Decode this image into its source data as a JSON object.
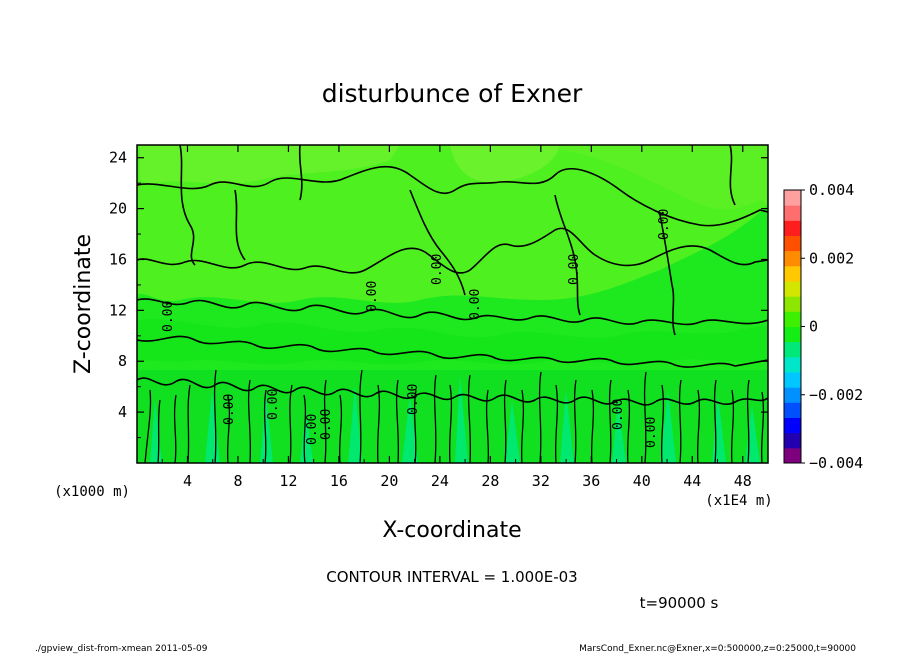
{
  "chart_data": {
    "type": "heatmap",
    "title": "disturbunce of Exner",
    "xlabel": "X-coordinate",
    "ylabel": "Z-coordinate",
    "x_unit_label": "(x1E4 m)",
    "y_unit_label": "(x1000 m)",
    "xlim": [
      0,
      50
    ],
    "ylim": [
      0,
      25
    ],
    "x_ticks": [
      4,
      8,
      12,
      16,
      20,
      24,
      28,
      32,
      36,
      40,
      44,
      48
    ],
    "y_ticks": [
      4,
      8,
      12,
      16,
      20,
      24
    ],
    "colorbar": {
      "min": -0.004,
      "max": 0.004,
      "tick_labels": [
        "0.004",
        "0.002",
        "0",
        "−0.002",
        "−0.004"
      ],
      "tick_values": [
        0.004,
        0.002,
        0,
        -0.002,
        -0.004
      ],
      "colors": [
        "#7f007f",
        "#2200b0",
        "#0000ff",
        "#0050ff",
        "#0090ff",
        "#00c8ff",
        "#00e6c8",
        "#00e87a",
        "#14ee14",
        "#3cf000",
        "#8ce600",
        "#d2e600",
        "#ffc800",
        "#ff8c00",
        "#ff5000",
        "#ff1e1e",
        "#ff6e6e",
        "#ffa0a0"
      ]
    },
    "contour_labels": [
      "0.00",
      "0.00",
      "0.00",
      "0.00",
      "0.00",
      "0.00",
      "0.00",
      "0.00",
      "0.00",
      "0.00",
      "0.00",
      "0.00",
      "0.00"
    ]
  },
  "footer": {
    "contour_interval": "CONTOUR INTERVAL = 1.000E-03",
    "time": "t=90000 s",
    "left_note": "./gpview_dist-from-xmean  2011-05-09",
    "right_note": "MarsCond_Exner.nc@Exner,x=0:500000,z=0:25000,t=90000"
  }
}
